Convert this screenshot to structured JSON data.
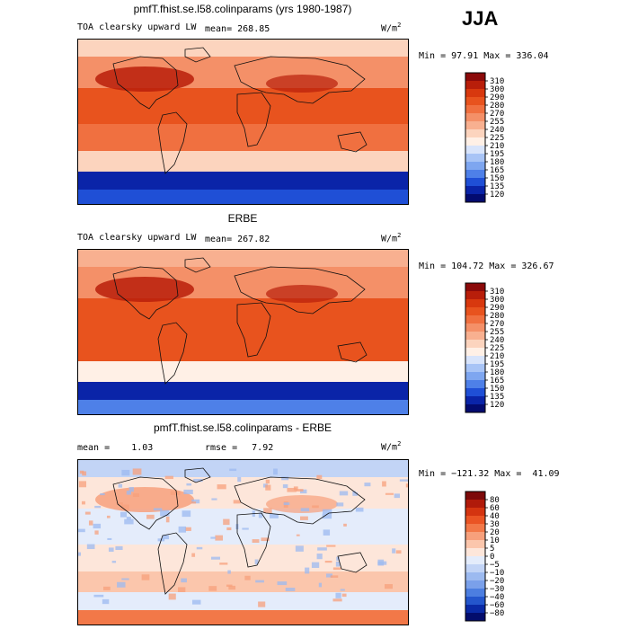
{
  "season": "JJA",
  "units": {
    "base": "W/m",
    "exp": "2"
  },
  "panels": [
    {
      "title": "pmfT.fhist.se.l58.colinparams (yrs 1980-1987)",
      "left_label": "TOA clearsky upward LW",
      "stat_label": "mean=",
      "stat_value": "268.85",
      "minmax": "Min =  97.91 Max = 336.04",
      "palette": "abs",
      "labels": [
        "310",
        "300",
        "290",
        "280",
        "270",
        "255",
        "240",
        "225",
        "210",
        "195",
        "180",
        "165",
        "150",
        "135",
        "120"
      ]
    },
    {
      "title": "ERBE",
      "left_label": "TOA clearsky upward LW",
      "stat_label": "mean=",
      "stat_value": "267.82",
      "minmax": "Min = 104.72 Max = 326.67",
      "palette": "abs",
      "labels": [
        "310",
        "300",
        "290",
        "280",
        "270",
        "255",
        "240",
        "225",
        "210",
        "195",
        "180",
        "165",
        "150",
        "135",
        "120"
      ]
    },
    {
      "title": "pmfT.fhist.se.l58.colinparams - ERBE",
      "left_label": "mean =    1.03",
      "stat_label": "rmse =",
      "stat_value": "7.92",
      "minmax": "Min = −121.32 Max =  41.09",
      "palette": "diff",
      "labels": [
        "80",
        "60",
        "40",
        "30",
        "20",
        "10",
        "5",
        "0",
        "−5",
        "−10",
        "−20",
        "−30",
        "−40",
        "−60",
        "−80"
      ]
    }
  ],
  "colors": {
    "abs": [
      "#8b0a0a",
      "#b81e0a",
      "#d8380e",
      "#e8531e",
      "#f07040",
      "#f49068",
      "#f8b090",
      "#fcd4be",
      "#fff0e6",
      "#d8e4fb",
      "#a8c4f6",
      "#7ea6f0",
      "#4e80e8",
      "#1f4fd6",
      "#0a24a8",
      "#030b6f"
    ],
    "diff": [
      "#7d0a0a",
      "#b01a0a",
      "#d43410",
      "#ea5424",
      "#f27848",
      "#f7a07c",
      "#fbc6ac",
      "#fde6da",
      "#e4ecfb",
      "#c2d4f6",
      "#9cbaf0",
      "#7aa0ea",
      "#4c7ee0",
      "#2456cc",
      "#0a2aa6",
      "#030d6c"
    ]
  },
  "maps": {
    "abs1": {
      "highlat_s": "#0a24a8",
      "antarctic": "#1f4fd6",
      "south_mid": "#fcd4be",
      "south_sub": "#f07040",
      "tropics": "#e8531e",
      "north_mid": "#f49068",
      "north_high": "#fcd4be",
      "hot": "#b81e0a"
    },
    "abs2": {
      "highlat_s": "#0a24a8",
      "antarctic": "#4e80e8",
      "south_mid": "#fff0e6",
      "south_sub": "#e8531e",
      "tropics": "#e8531e",
      "north_mid": "#f49068",
      "north_high": "#f8b090",
      "hot": "#b81e0a"
    },
    "diff": {
      "highlat_s": "#e4ecfb",
      "antarctic": "#f27848",
      "south_mid": "#fbc6ac",
      "south_sub": "#fde6da",
      "tropics": "#e4ecfb",
      "north_mid": "#fde6da",
      "north_high": "#c2d4f6",
      "hot": "#f7a07c"
    }
  }
}
